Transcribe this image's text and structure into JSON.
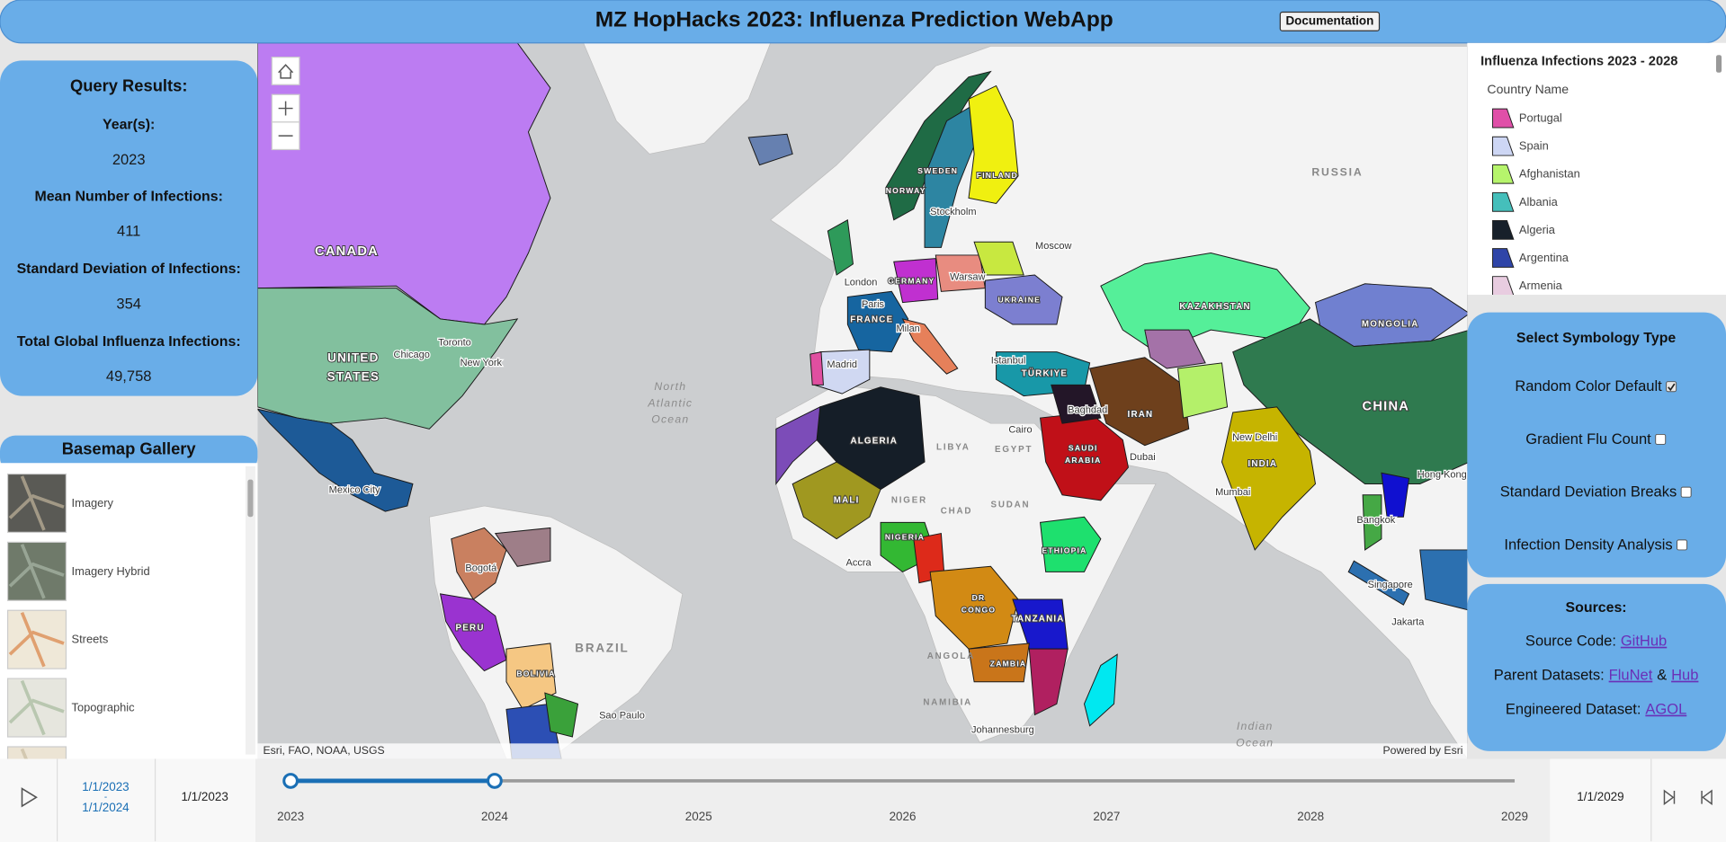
{
  "header": {
    "title": "MZ HopHacks 2023: Influenza Prediction WebApp",
    "button": "Documentation"
  },
  "query": {
    "title": "Query Results:",
    "items": [
      {
        "label": "Year(s):",
        "value": "2023"
      },
      {
        "label": "Mean Number of Infections:",
        "value": "411"
      },
      {
        "label": "Standard Deviation of Infections:",
        "value": "354"
      },
      {
        "label": "Total Global Influenza Infections:",
        "value": "49,758"
      }
    ]
  },
  "basemap": {
    "title": "Basemap Gallery",
    "items": [
      "Imagery",
      "Imagery Hybrid",
      "Streets",
      "Topographic"
    ]
  },
  "map": {
    "labels": [
      "CANADA",
      "UNITED",
      "STATES",
      "RUSSIA",
      "CHINA",
      "BRAZIL",
      "ALGERIA",
      "KAZAKHSTAN",
      "MONGOLIA",
      "INDIA",
      "IRAN",
      "SAUDI",
      "ARABIA",
      "TÜRKIYE",
      "LIBYA",
      "EGYPT",
      "SUDAN",
      "CHAD",
      "NIGER",
      "MALI",
      "NIGERIA",
      "ETHIOPIA",
      "DR",
      "CONGO",
      "TANZANIA",
      "ANGOLA",
      "NAMIBIA",
      "ZAMBIA",
      "FINLAND",
      "NORWAY",
      "SWEDEN",
      "GERMANY",
      "FRANCE",
      "UKRAINE",
      "PERU",
      "BOLIVIA",
      "North",
      "Atlantic",
      "Ocean",
      "Indian",
      "Ocean",
      "Moscow",
      "Stockholm",
      "London",
      "Paris",
      "Madrid",
      "Warsaw",
      "Milan",
      "Istanbul",
      "Cairo",
      "Baghdad",
      "Dubai",
      "New Delhi",
      "Mumbai",
      "Bangkok",
      "Singapore",
      "Jakarta",
      "Hong Kong",
      "Chicago",
      "Toronto",
      "New York",
      "Mexico City",
      "Bogotá",
      "Accra",
      "Johannesburg",
      "Sao Paulo"
    ],
    "attribution": "Esri, FAO, NOAA, USGS",
    "powered": "Powered by Esri"
  },
  "legend": {
    "title": "Influenza Infections 2023 - 2028",
    "field": "Country Name",
    "items": [
      {
        "name": "Portugal",
        "color": "#e04fa8"
      },
      {
        "name": "Spain",
        "color": "#cdd6f4"
      },
      {
        "name": "Afghanistan",
        "color": "#b6f46c"
      },
      {
        "name": "Albania",
        "color": "#45bfbb"
      },
      {
        "name": "Algeria",
        "color": "#17202a"
      },
      {
        "name": "Argentina",
        "color": "#2f45a8"
      },
      {
        "name": "Armenia",
        "color": "#e8cce0"
      }
    ]
  },
  "symbology": {
    "title": "Select Symbology Type",
    "options": [
      {
        "label": "Random Color Default",
        "checked": true
      },
      {
        "label": "Gradient Flu Count",
        "checked": false
      },
      {
        "label": "Standard Deviation Breaks",
        "checked": false
      },
      {
        "label": "Infection Density Analysis",
        "checked": false
      }
    ]
  },
  "sources": {
    "title": "Sources:",
    "lines": [
      {
        "label": "Source Code:",
        "parts": [
          {
            "link": "GitHub"
          }
        ]
      },
      {
        "label": "Parent Datasets:",
        "parts": [
          {
            "link": "FluNet"
          },
          {
            "text": "&"
          },
          {
            "link": "Hub"
          }
        ]
      },
      {
        "label": "Engineered Dataset:",
        "parts": [
          {
            "link": "AGOL"
          }
        ]
      }
    ]
  },
  "timeline": {
    "range_start": "1/1/2023",
    "separator": "-",
    "range_end": "1/1/2024",
    "min": "1/1/2023",
    "max": "1/1/2029",
    "ticks": [
      "2023",
      "2024",
      "2025",
      "2026",
      "2027",
      "2028",
      "2029"
    ]
  }
}
